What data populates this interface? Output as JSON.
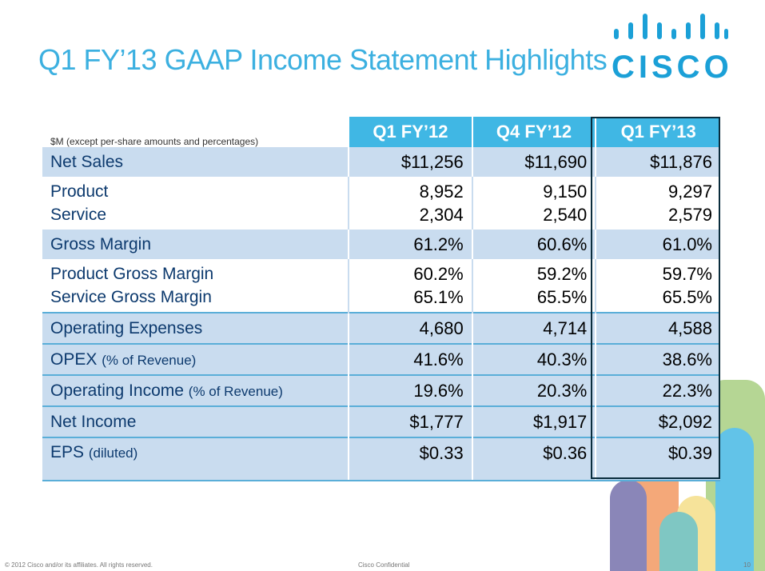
{
  "slide": {
    "title": "Q1 FY’13 GAAP Income Statement Highlights",
    "logo_text": "CISCO",
    "colors": {
      "title": "#3cb0e0",
      "header_bg": "#40b7e4",
      "row_shade": "#c9dcef",
      "label": "#0d3a6e",
      "highlight_border": "#0a2d3d"
    }
  },
  "table": {
    "units_note": "$M (except per-share amounts and percentages)",
    "columns": [
      "Q1 FY’12",
      "Q4 FY’12",
      "Q1 FY’13"
    ],
    "rows": [
      {
        "label": "Net Sales",
        "values": [
          "$11,256",
          "$11,690",
          "$11,876"
        ]
      },
      {
        "labels": [
          "Product",
          "Service"
        ],
        "values": [
          [
            "8,952",
            "2,304"
          ],
          [
            "9,150",
            "2,540"
          ],
          [
            "9,297",
            "2,579"
          ]
        ]
      },
      {
        "label": "Gross Margin",
        "values": [
          "61.2%",
          "60.6%",
          "61.0%"
        ]
      },
      {
        "labels": [
          "Product Gross Margin",
          "Service Gross Margin"
        ],
        "values": [
          [
            "60.2%",
            "65.1%"
          ],
          [
            "59.2%",
            "65.5%"
          ],
          [
            "59.7%",
            "65.5%"
          ]
        ]
      },
      {
        "label": "Operating Expenses",
        "values": [
          "4,680",
          "4,714",
          "4,588"
        ]
      },
      {
        "label": "OPEX",
        "sub": "(% of Revenue)",
        "values": [
          "41.6%",
          "40.3%",
          "38.6%"
        ]
      },
      {
        "label": "Operating Income",
        "sub": "(% of Revenue)",
        "values": [
          "19.6%",
          "20.3%",
          "22.3%"
        ]
      },
      {
        "label": "Net Income",
        "values": [
          "$1,777",
          "$1,917",
          "$2,092"
        ]
      },
      {
        "label": "EPS",
        "sub": "(diluted)",
        "values": [
          "$0.33",
          "$0.36",
          "$0.39"
        ]
      }
    ]
  },
  "footer": {
    "copyright": "© 2012 Cisco and/or its affiliates. All rights reserved.",
    "confidential": "Cisco Confidential",
    "page_number": "10"
  }
}
